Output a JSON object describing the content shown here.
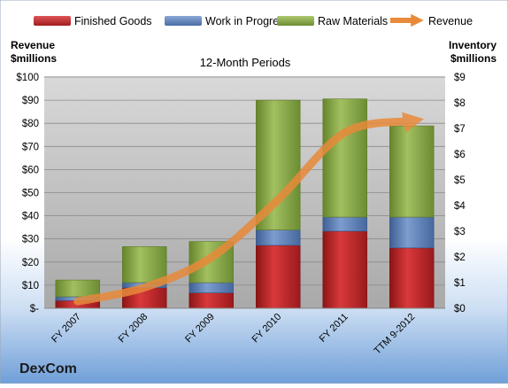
{
  "chart_data": {
    "type": "bar",
    "subtitle": "12-Month Periods",
    "company": "DexCom",
    "left_axis_label": [
      "Revenue",
      "$millions"
    ],
    "right_axis_label": [
      "Inventory",
      "$millions"
    ],
    "categories": [
      "FY 2007",
      "FY 2008",
      "FY 2009",
      "FY 2010",
      "FY 2011",
      "TTM 9-2012"
    ],
    "left_ticks": [
      "$-",
      "$10",
      "$20",
      "$30",
      "$40",
      "$50",
      "$60",
      "$70",
      "$80",
      "$90",
      "$100"
    ],
    "right_ticks": [
      "$0",
      "$1",
      "$2",
      "$3",
      "$4",
      "$5",
      "$6",
      "$7",
      "$8",
      "$9"
    ],
    "ylim_left": [
      0,
      100
    ],
    "ylim_right": [
      0,
      9
    ],
    "series": [
      {
        "name": "Finished Goods",
        "axis": "right",
        "values": [
          0.3,
          0.8,
          0.6,
          2.45,
          3.0,
          2.35
        ]
      },
      {
        "name": "Work in Progress",
        "axis": "right",
        "values": [
          0.15,
          0.2,
          0.4,
          0.6,
          0.55,
          1.2
        ]
      },
      {
        "name": "Raw Materials",
        "axis": "right",
        "values": [
          0.65,
          1.4,
          1.6,
          5.05,
          4.6,
          3.55
        ]
      },
      {
        "name": "Revenue",
        "axis": "left",
        "type": "line",
        "values": [
          3,
          9,
          22,
          47,
          76,
          81
        ]
      }
    ],
    "legend_position": "top",
    "grid": true
  },
  "colors": {
    "finished_goods": "#c0282b",
    "work_in_progress": "#5b7fb8",
    "raw_materials": "#8cab4a",
    "revenue": "#e88a3a",
    "plot_bg": "#c0c0c0",
    "company_text": "#1a1a1a"
  }
}
